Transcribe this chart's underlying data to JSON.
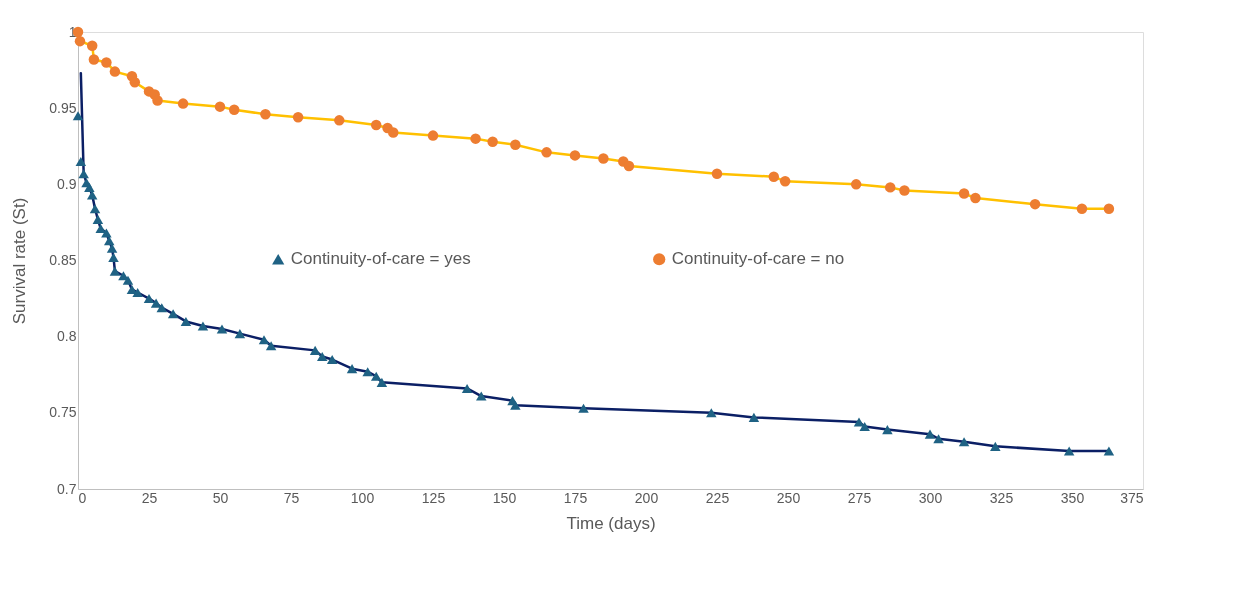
{
  "chart_data": {
    "type": "scatter",
    "xlabel": "Time (days)",
    "ylabel": "Survival rate (St)",
    "xlim": [
      0,
      375
    ],
    "xticks": [
      0,
      25,
      50,
      75,
      100,
      125,
      150,
      175,
      200,
      225,
      250,
      275,
      300,
      325,
      350,
      375
    ],
    "ylim": [
      0.7,
      1
    ],
    "yticks": [
      0.7,
      0.75,
      0.8,
      0.85,
      0.9,
      0.95,
      1
    ],
    "grid": false,
    "legend": "center",
    "series": [
      {
        "type": "line",
        "color": "#0b1f65",
        "x": [
          1,
          2,
          3,
          4,
          5,
          6,
          7,
          8,
          10,
          11,
          12,
          12.5,
          13,
          16,
          17.6,
          19,
          21,
          25,
          27.5,
          29.5,
          33.5,
          38,
          44,
          50.7,
          57,
          65.5,
          68,
          83.5,
          86,
          89.5,
          96.5,
          102,
          105,
          107,
          137,
          142,
          153,
          154,
          178,
          223,
          238,
          275,
          277,
          285,
          300,
          303,
          312,
          323,
          349,
          363
        ],
        "values": [
          0.973,
          0.907,
          0.901,
          0.898,
          0.893,
          0.884,
          0.877,
          0.871,
          0.868,
          0.863,
          0.858,
          0.852,
          0.843,
          0.84,
          0.837,
          0.831,
          0.829,
          0.825,
          0.822,
          0.819,
          0.815,
          0.81,
          0.807,
          0.805,
          0.802,
          0.798,
          0.794,
          0.791,
          0.787,
          0.785,
          0.779,
          0.777,
          0.774,
          0.77,
          0.766,
          0.761,
          0.758,
          0.755,
          0.753,
          0.75,
          0.747,
          0.744,
          0.741,
          0.739,
          0.736,
          0.733,
          0.731,
          0.728,
          0.725,
          0.725
        ]
      },
      {
        "type": "line",
        "color": "#ffc000",
        "x": [
          0,
          0.7,
          5,
          5.6,
          10,
          13,
          19,
          20,
          25,
          27,
          28,
          37,
          50,
          55,
          66,
          77.5,
          92,
          105,
          109,
          111,
          125,
          140,
          146,
          154,
          165,
          175,
          185,
          192,
          194,
          225,
          245,
          249,
          274,
          286,
          291,
          312,
          316,
          337,
          353.5,
          363
        ],
        "values": [
          1.0,
          0.994,
          0.991,
          0.982,
          0.98,
          0.974,
          0.971,
          0.967,
          0.961,
          0.959,
          0.955,
          0.953,
          0.951,
          0.949,
          0.946,
          0.944,
          0.942,
          0.939,
          0.937,
          0.934,
          0.932,
          0.93,
          0.928,
          0.926,
          0.921,
          0.919,
          0.917,
          0.915,
          0.912,
          0.907,
          0.905,
          0.902,
          0.9,
          0.898,
          0.896,
          0.894,
          0.891,
          0.887,
          0.884,
          0.884
        ]
      },
      {
        "name": "Continuity-of-care = yes",
        "color": "#1f6284",
        "marker": "triangle",
        "x": [
          0,
          1,
          2,
          3,
          4,
          5,
          6,
          7,
          8,
          10,
          11,
          12,
          12.5,
          13,
          16,
          17.6,
          19,
          21,
          25,
          27.5,
          29.5,
          33.5,
          38,
          44,
          50.7,
          57,
          65.5,
          68,
          83.5,
          86,
          89.5,
          96.5,
          102,
          105,
          107,
          137,
          142,
          153,
          154,
          178,
          223,
          238,
          275,
          277,
          285,
          300,
          303,
          312,
          323,
          349,
          363
        ],
        "values": [
          0.945,
          0.915,
          0.907,
          0.901,
          0.898,
          0.893,
          0.884,
          0.877,
          0.871,
          0.868,
          0.863,
          0.858,
          0.852,
          0.843,
          0.84,
          0.837,
          0.831,
          0.829,
          0.825,
          0.822,
          0.819,
          0.815,
          0.81,
          0.807,
          0.805,
          0.802,
          0.798,
          0.794,
          0.791,
          0.787,
          0.785,
          0.779,
          0.777,
          0.774,
          0.77,
          0.766,
          0.761,
          0.758,
          0.755,
          0.753,
          0.75,
          0.747,
          0.744,
          0.741,
          0.739,
          0.736,
          0.733,
          0.731,
          0.728,
          0.725,
          0.725
        ]
      },
      {
        "name": "Continuity-of-care = no",
        "color": "#ed7d31",
        "marker": "circle",
        "x": [
          0,
          0.7,
          5,
          5.6,
          10,
          13,
          19,
          20,
          25,
          27,
          28,
          37,
          50,
          55,
          66,
          77.5,
          92,
          105,
          109,
          111,
          125,
          140,
          146,
          154,
          165,
          175,
          185,
          192,
          194,
          225,
          245,
          249,
          274,
          286,
          291,
          312,
          316,
          337,
          353.5,
          363
        ],
        "values": [
          1.0,
          0.994,
          0.991,
          0.982,
          0.98,
          0.974,
          0.971,
          0.967,
          0.961,
          0.959,
          0.955,
          0.953,
          0.951,
          0.949,
          0.946,
          0.944,
          0.942,
          0.939,
          0.937,
          0.934,
          0.932,
          0.93,
          0.928,
          0.926,
          0.921,
          0.919,
          0.917,
          0.915,
          0.912,
          0.907,
          0.905,
          0.902,
          0.9,
          0.898,
          0.896,
          0.894,
          0.891,
          0.887,
          0.884,
          0.884
        ]
      }
    ]
  }
}
